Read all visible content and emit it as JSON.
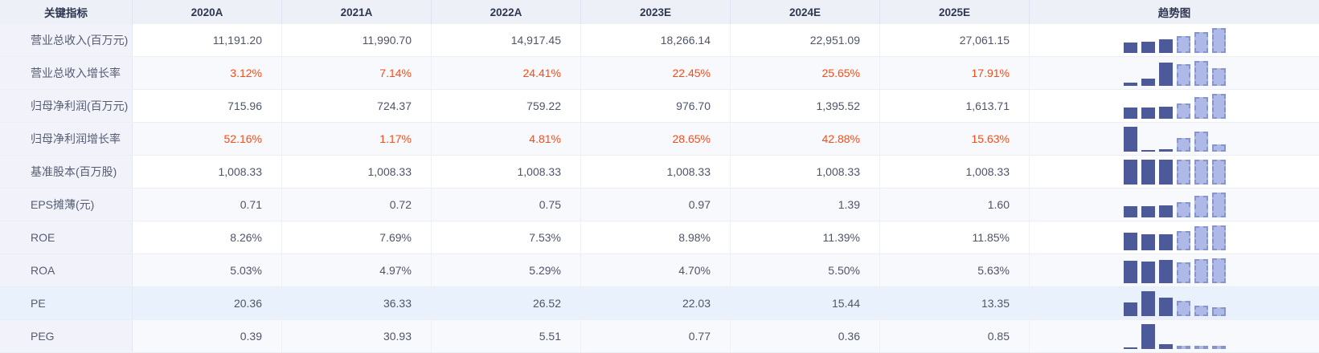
{
  "table": {
    "header": [
      "关键指标",
      "2020A",
      "2021A",
      "2022A",
      "2023E",
      "2024E",
      "2025E",
      "趋势图"
    ],
    "rows": [
      {
        "indicator": "营业总收入(百万元)",
        "values": [
          "11,191.20",
          "11,990.70",
          "14,917.45",
          "18,266.14",
          "22,951.09",
          "27,061.15"
        ],
        "value_color": "default",
        "highlighted": false,
        "trend_pct": [
          41,
          44,
          55,
          68,
          85,
          100
        ]
      },
      {
        "indicator": "营业总收入增长率",
        "values": [
          "3.12%",
          "7.14%",
          "24.41%",
          "22.45%",
          "25.65%",
          "17.91%"
        ],
        "value_color": "orange",
        "highlighted": false,
        "trend_pct": [
          12,
          28,
          95,
          88,
          100,
          70
        ]
      },
      {
        "indicator": "归母净利润(百万元)",
        "values": [
          "715.96",
          "724.37",
          "759.22",
          "976.70",
          "1,395.52",
          "1,613.71"
        ],
        "value_color": "default",
        "highlighted": false,
        "trend_pct": [
          44,
          45,
          47,
          61,
          86,
          100
        ]
      },
      {
        "indicator": "归母净利润增长率",
        "values": [
          "52.16%",
          "1.17%",
          "4.81%",
          "28.65%",
          "42.88%",
          "15.63%"
        ],
        "value_color": "orange",
        "highlighted": false,
        "trend_pct": [
          100,
          2,
          9,
          55,
          82,
          30
        ]
      },
      {
        "indicator": "基准股本(百万股)",
        "values": [
          "1,008.33",
          "1,008.33",
          "1,008.33",
          "1,008.33",
          "1,008.33",
          "1,008.33"
        ],
        "value_color": "default",
        "highlighted": false,
        "trend_pct": [
          100,
          100,
          100,
          100,
          100,
          100
        ]
      },
      {
        "indicator": "EPS摊薄(元)",
        "values": [
          "0.71",
          "0.72",
          "0.75",
          "0.97",
          "1.39",
          "1.60"
        ],
        "value_color": "default",
        "highlighted": false,
        "trend_pct": [
          44,
          45,
          47,
          61,
          87,
          100
        ]
      },
      {
        "indicator": "ROE",
        "values": [
          "8.26%",
          "7.69%",
          "7.53%",
          "8.98%",
          "11.39%",
          "11.85%"
        ],
        "value_color": "default",
        "highlighted": false,
        "trend_pct": [
          70,
          65,
          64,
          76,
          96,
          100
        ]
      },
      {
        "indicator": "ROA",
        "values": [
          "5.03%",
          "4.97%",
          "5.29%",
          "4.70%",
          "5.50%",
          "5.63%"
        ],
        "value_color": "default",
        "highlighted": false,
        "trend_pct": [
          89,
          88,
          94,
          83,
          98,
          100
        ]
      },
      {
        "indicator": "PE",
        "values": [
          "20.36",
          "36.33",
          "26.52",
          "22.03",
          "15.44",
          "13.35"
        ],
        "value_color": "default",
        "highlighted": true,
        "trend_pct": [
          56,
          100,
          73,
          61,
          43,
          37
        ]
      },
      {
        "indicator": "PEG",
        "values": [
          "0.39",
          "30.93",
          "5.51",
          "0.77",
          "0.36",
          "0.85"
        ],
        "value_color": "default",
        "highlighted": false,
        "trend_pct": [
          2,
          100,
          18,
          3,
          2,
          3
        ]
      }
    ]
  },
  "colors": {
    "orange_value": "#fb4b14",
    "bar_actual": "#4d5a99",
    "bar_estimate_fill": "#aeb9e8",
    "bar_estimate_border": "#8894cc",
    "header_bg": "#eef0f8",
    "label_col_bg": "#f1f2fa",
    "alt_row_bg": "#f8f9fd",
    "highlight_row_bg": "#e9f2fc"
  }
}
